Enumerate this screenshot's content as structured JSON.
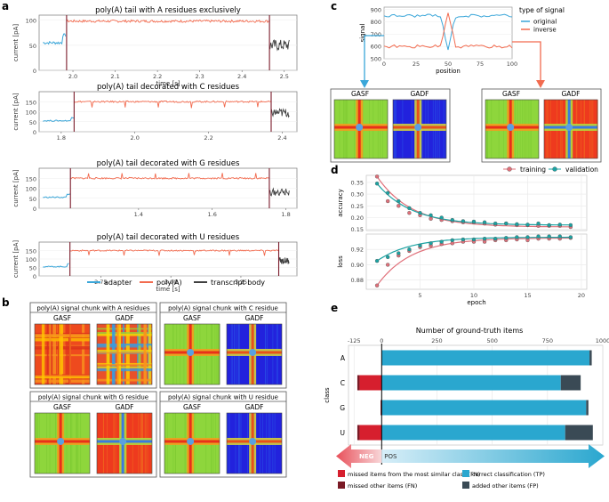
{
  "panel_letters": {
    "a": "a",
    "b": "b",
    "c": "c",
    "d": "d",
    "e": "e"
  },
  "colors": {
    "adapter": "#3aa6d9",
    "polya": "#f26b4f",
    "transcript": "#404040",
    "marker": "#7a1a2a",
    "training": "#e0707a",
    "validation": "#1aa3a3",
    "tp": "#2aa7cf",
    "fp": "#3a4a55",
    "fn_similar": "#d61f2e",
    "fn_other": "#7a1a25",
    "original": "#3aa6d9",
    "inverse": "#f26b4f"
  },
  "panel_a": {
    "ylabel": "current [pA]",
    "xlabel": "time [s]",
    "legend": [
      {
        "key": "adapter",
        "label": "adapter"
      },
      {
        "key": "polya",
        "label": "poly(A)"
      },
      {
        "key": "transcript",
        "label": "transcript body"
      }
    ],
    "plots": [
      {
        "title": "poly(A) tail with A residues exclusively",
        "xlim": [
          1.92,
          2.53
        ],
        "xticks": [
          "2.0",
          "2.1",
          "2.2",
          "2.3",
          "2.4",
          "2.5"
        ],
        "xtick_vals": [
          2.0,
          2.1,
          2.2,
          2.3,
          2.4,
          2.5
        ],
        "ylim": [
          0,
          110
        ],
        "yticks": [
          "0",
          "50",
          "100"
        ],
        "ytick_vals": [
          0,
          50,
          100
        ],
        "start": 1.985,
        "end": 2.465,
        "adapter_level": 55,
        "polya_level": 98,
        "transcript_level": 50,
        "show_xlabel": true
      },
      {
        "title": "poly(A) tail decorated with C residues",
        "xlim": [
          1.74,
          2.44
        ],
        "xticks": [
          "1.8",
          "2.0",
          "2.2",
          "2.4"
        ],
        "xtick_vals": [
          1.8,
          2.0,
          2.2,
          2.4
        ],
        "ylim": [
          0,
          200
        ],
        "yticks": [
          "0",
          "50",
          "100",
          "150"
        ],
        "ytick_vals": [
          0,
          50,
          100,
          150
        ],
        "start": 1.835,
        "end": 2.37,
        "adapter_level": 55,
        "polya_level": 150,
        "transcript_level": 95,
        "show_xlabel": false
      },
      {
        "title": "poly(A) tail decorated with G residues",
        "xlim": [
          1.13,
          1.83
        ],
        "xticks": [
          "1.4",
          "1.6",
          "1.8"
        ],
        "xtick_vals": [
          1.4,
          1.6,
          1.8
        ],
        "ylim": [
          0,
          200
        ],
        "yticks": [
          "0",
          "50",
          "100",
          "150"
        ],
        "ytick_vals": [
          0,
          50,
          100,
          150
        ],
        "start": 1.215,
        "end": 1.755,
        "adapter_level": 55,
        "polya_level": 150,
        "transcript_level": 80,
        "show_xlabel": false
      },
      {
        "title": "poly(A) tail decorated with U residues",
        "xlim": [
          2.53,
          3.45
        ],
        "xticks": [
          "2.75",
          "3.00",
          "3.25"
        ],
        "xtick_vals": [
          2.75,
          3.0,
          3.25
        ],
        "ylim": [
          0,
          200
        ],
        "yticks": [
          "0",
          "50",
          "100",
          "150"
        ],
        "ytick_vals": [
          0,
          50,
          100,
          150
        ],
        "start": 2.64,
        "end": 3.385,
        "adapter_level": 55,
        "polya_level": 150,
        "transcript_level": 90,
        "show_xlabel": true
      }
    ]
  },
  "panel_b": {
    "gasf": "GASF",
    "gadf": "GADF",
    "boxes": [
      {
        "title": "poly(A) signal chunk with A residues",
        "style": "A"
      },
      {
        "title": "poly(A) signal chunk with C residue",
        "style": "C"
      },
      {
        "title": "poly(A) signal chunk with G residue",
        "style": "G"
      },
      {
        "title": "poly(A) signal chunk with U residue",
        "style": "U"
      }
    ]
  },
  "panel_c": {
    "ylabel": "signal",
    "xlabel": "position",
    "legend_title": "type of signal",
    "legend": [
      {
        "key": "original",
        "label": "original"
      },
      {
        "key": "inverse",
        "label": "inverse"
      }
    ],
    "xticks": [
      "0",
      "25",
      "50",
      "75",
      "100"
    ],
    "yticks": [
      "500",
      "600",
      "700",
      "800",
      "900"
    ],
    "xlim": [
      0,
      100
    ],
    "ylim": [
      500,
      920
    ],
    "gasf": "GASF",
    "gadf": "GADF"
  },
  "panel_d": {
    "legend": [
      {
        "key": "training",
        "label": "training"
      },
      {
        "key": "validation",
        "label": "validation"
      }
    ],
    "xlabel": "epoch",
    "xticks": [
      "5",
      "10",
      "15",
      "20"
    ],
    "xtick_vals": [
      5,
      10,
      15,
      20
    ],
    "accuracy": {
      "ylabel": "accuracy",
      "ylim": [
        0.145,
        0.38
      ],
      "yticks": [
        "0.15",
        "0.20",
        "0.25",
        "0.30",
        "0.35"
      ],
      "ytick_vals": [
        0.15,
        0.2,
        0.25,
        0.3,
        0.35
      ],
      "epochs": [
        1,
        2,
        3,
        4,
        5,
        6,
        7,
        8,
        9,
        10,
        11,
        12,
        13,
        14,
        15,
        16,
        17,
        18,
        19
      ],
      "training": [
        0.375,
        0.27,
        0.25,
        0.22,
        0.21,
        0.195,
        0.19,
        0.185,
        0.18,
        0.18,
        0.175,
        0.17,
        0.175,
        0.168,
        0.168,
        0.165,
        0.165,
        0.165,
        0.16
      ],
      "validation": [
        0.345,
        0.305,
        0.27,
        0.24,
        0.22,
        0.21,
        0.2,
        0.19,
        0.185,
        0.183,
        0.18,
        0.175,
        0.175,
        0.172,
        0.17,
        0.175,
        0.168,
        0.17,
        0.168
      ]
    },
    "loss": {
      "ylabel": "loss",
      "ylim": [
        0.868,
        0.94
      ],
      "yticks": [
        "0.88",
        "0.90",
        "0.92"
      ],
      "ytick_vals": [
        0.88,
        0.9,
        0.92
      ],
      "epochs": [
        1,
        2,
        3,
        4,
        5,
        6,
        7,
        8,
        9,
        10,
        11,
        12,
        13,
        14,
        15,
        16,
        17,
        18,
        19
      ],
      "training": [
        0.873,
        0.9,
        0.912,
        0.918,
        0.923,
        0.925,
        0.927,
        0.928,
        0.93,
        0.93,
        0.93,
        0.932,
        0.932,
        0.933,
        0.932,
        0.934,
        0.934,
        0.934,
        0.935
      ],
      "validation": [
        0.905,
        0.91,
        0.915,
        0.92,
        0.925,
        0.928,
        0.93,
        0.932,
        0.933,
        0.933,
        0.934,
        0.934,
        0.935,
        0.936,
        0.936,
        0.937,
        0.937,
        0.937,
        0.936
      ]
    }
  },
  "panel_e": {
    "title": "Number of ground-truth items",
    "ylabel": "class",
    "xticks": [
      "-125",
      "0",
      "250",
      "500",
      "750",
      "1000"
    ],
    "xtick_vals": [
      -125,
      0,
      250,
      500,
      750,
      1000
    ],
    "xlim": [
      -150,
      1000
    ],
    "categories": [
      "A",
      "C",
      "G",
      "U"
    ],
    "series": [
      {
        "name": "missed items from the most similar class (FN)",
        "key": "fn_similar",
        "values": [
          0,
          -100,
          0,
          -100
        ]
      },
      {
        "name": "missed other items (FN)",
        "key": "fn_other",
        "values": [
          0,
          -10,
          -5,
          -10
        ]
      },
      {
        "name": "correct classification (TP)",
        "key": "tp",
        "values": [
          940,
          810,
          925,
          830
        ]
      },
      {
        "name": "added other items (FP)",
        "key": "fp",
        "values": [
          10,
          90,
          10,
          125
        ]
      }
    ],
    "neg_label": "NEG",
    "pos_label": "POS"
  }
}
